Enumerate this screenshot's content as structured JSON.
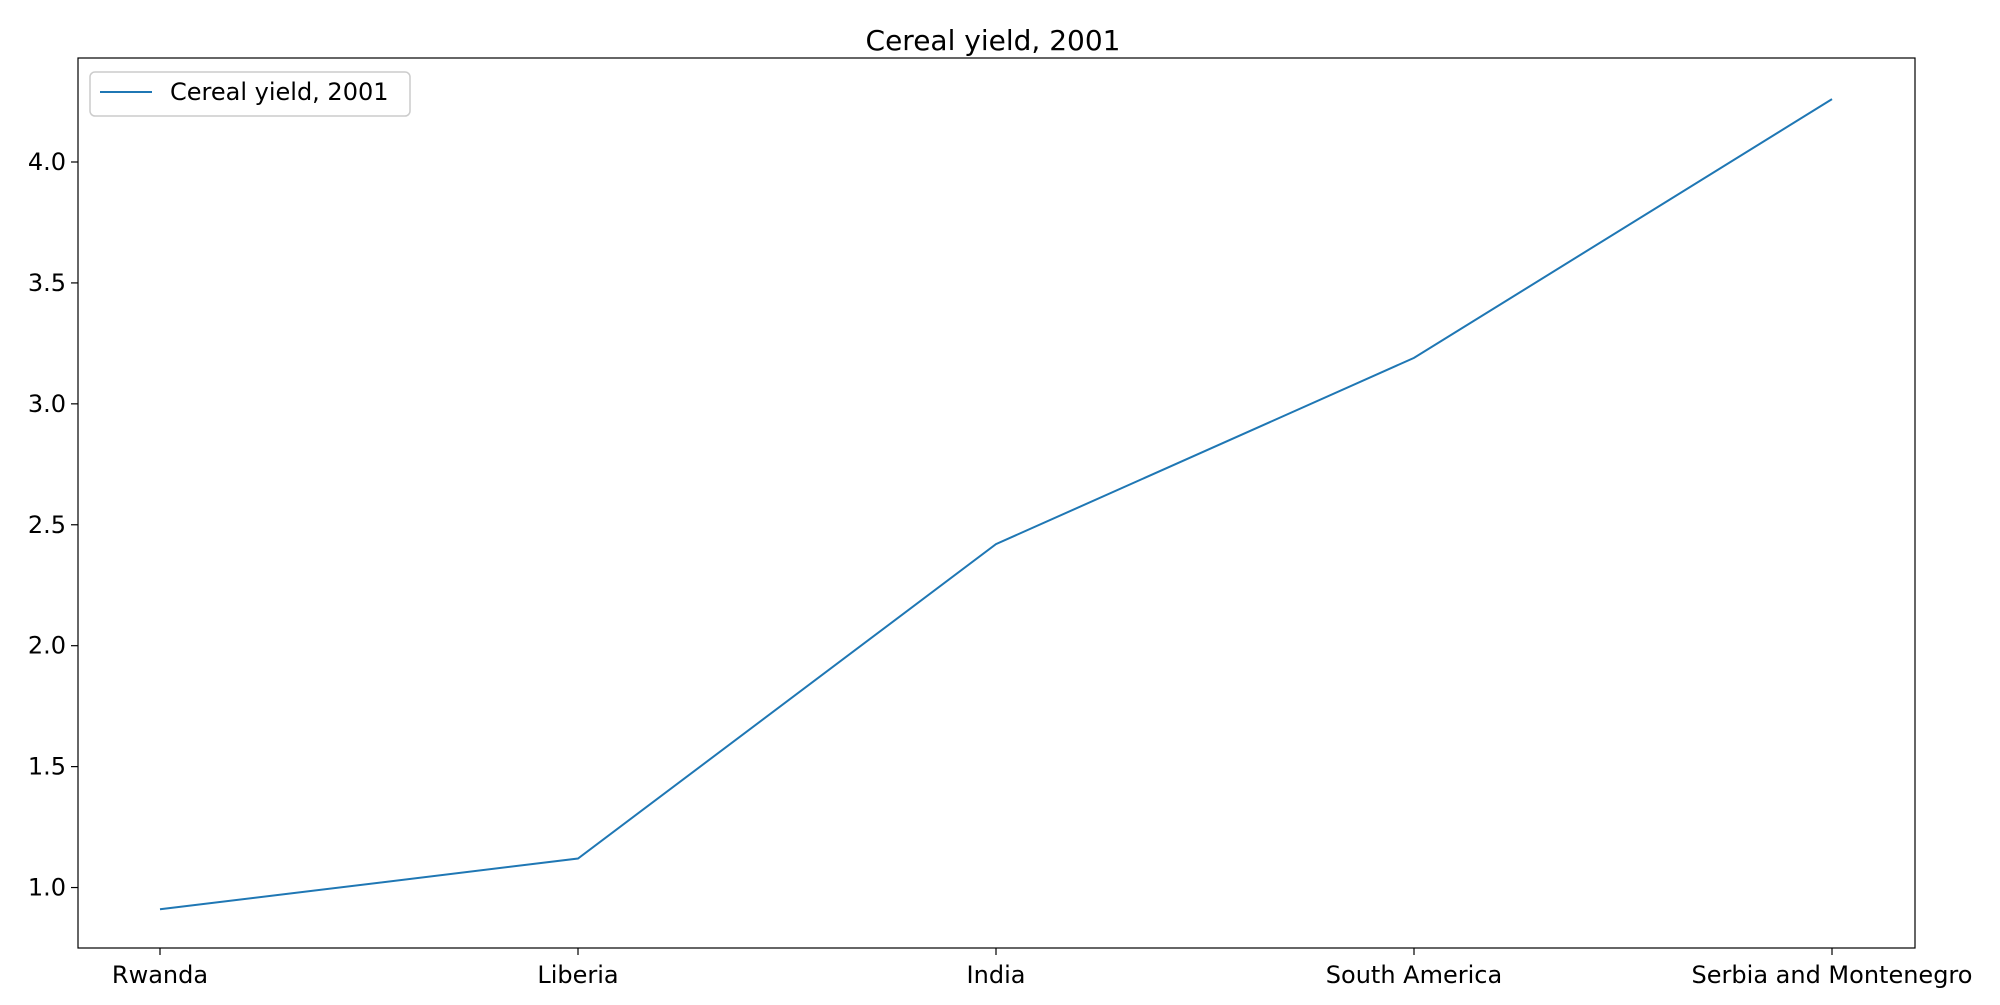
{
  "chart_data": {
    "type": "line",
    "title": "Cereal yield, 2001",
    "xlabel": "",
    "ylabel": "",
    "categories": [
      "Rwanda",
      "Liberia",
      "India",
      "South America",
      "Serbia and Montenegro"
    ],
    "series": [
      {
        "name": "Cereal yield, 2001",
        "values": [
          0.91,
          1.12,
          2.42,
          3.19,
          4.26
        ],
        "color": "#1f77b4"
      }
    ],
    "ylim": [
      0.75,
      4.43
    ],
    "yticks": [
      1.0,
      1.5,
      2.0,
      2.5,
      3.0,
      3.5,
      4.0
    ],
    "ytick_labels": [
      "1.0",
      "1.5",
      "2.0",
      "2.5",
      "3.0",
      "3.5",
      "4.0"
    ],
    "grid": false,
    "legend_position": "top-left"
  }
}
